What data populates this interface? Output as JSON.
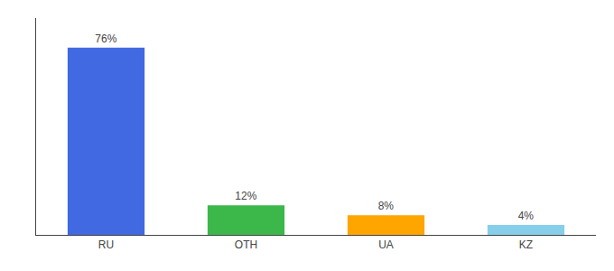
{
  "chart_data": {
    "type": "bar",
    "categories": [
      "RU",
      "OTH",
      "UA",
      "KZ"
    ],
    "values": [
      76,
      12,
      8,
      4
    ],
    "value_labels": [
      "76%",
      "12%",
      "8%",
      "4%"
    ],
    "colors": [
      "#4169e1",
      "#3cb84a",
      "#ffa500",
      "#87ceeb"
    ],
    "ylim": [
      0,
      88
    ],
    "grid": false,
    "data_labels": true,
    "tick_labels": "x"
  }
}
